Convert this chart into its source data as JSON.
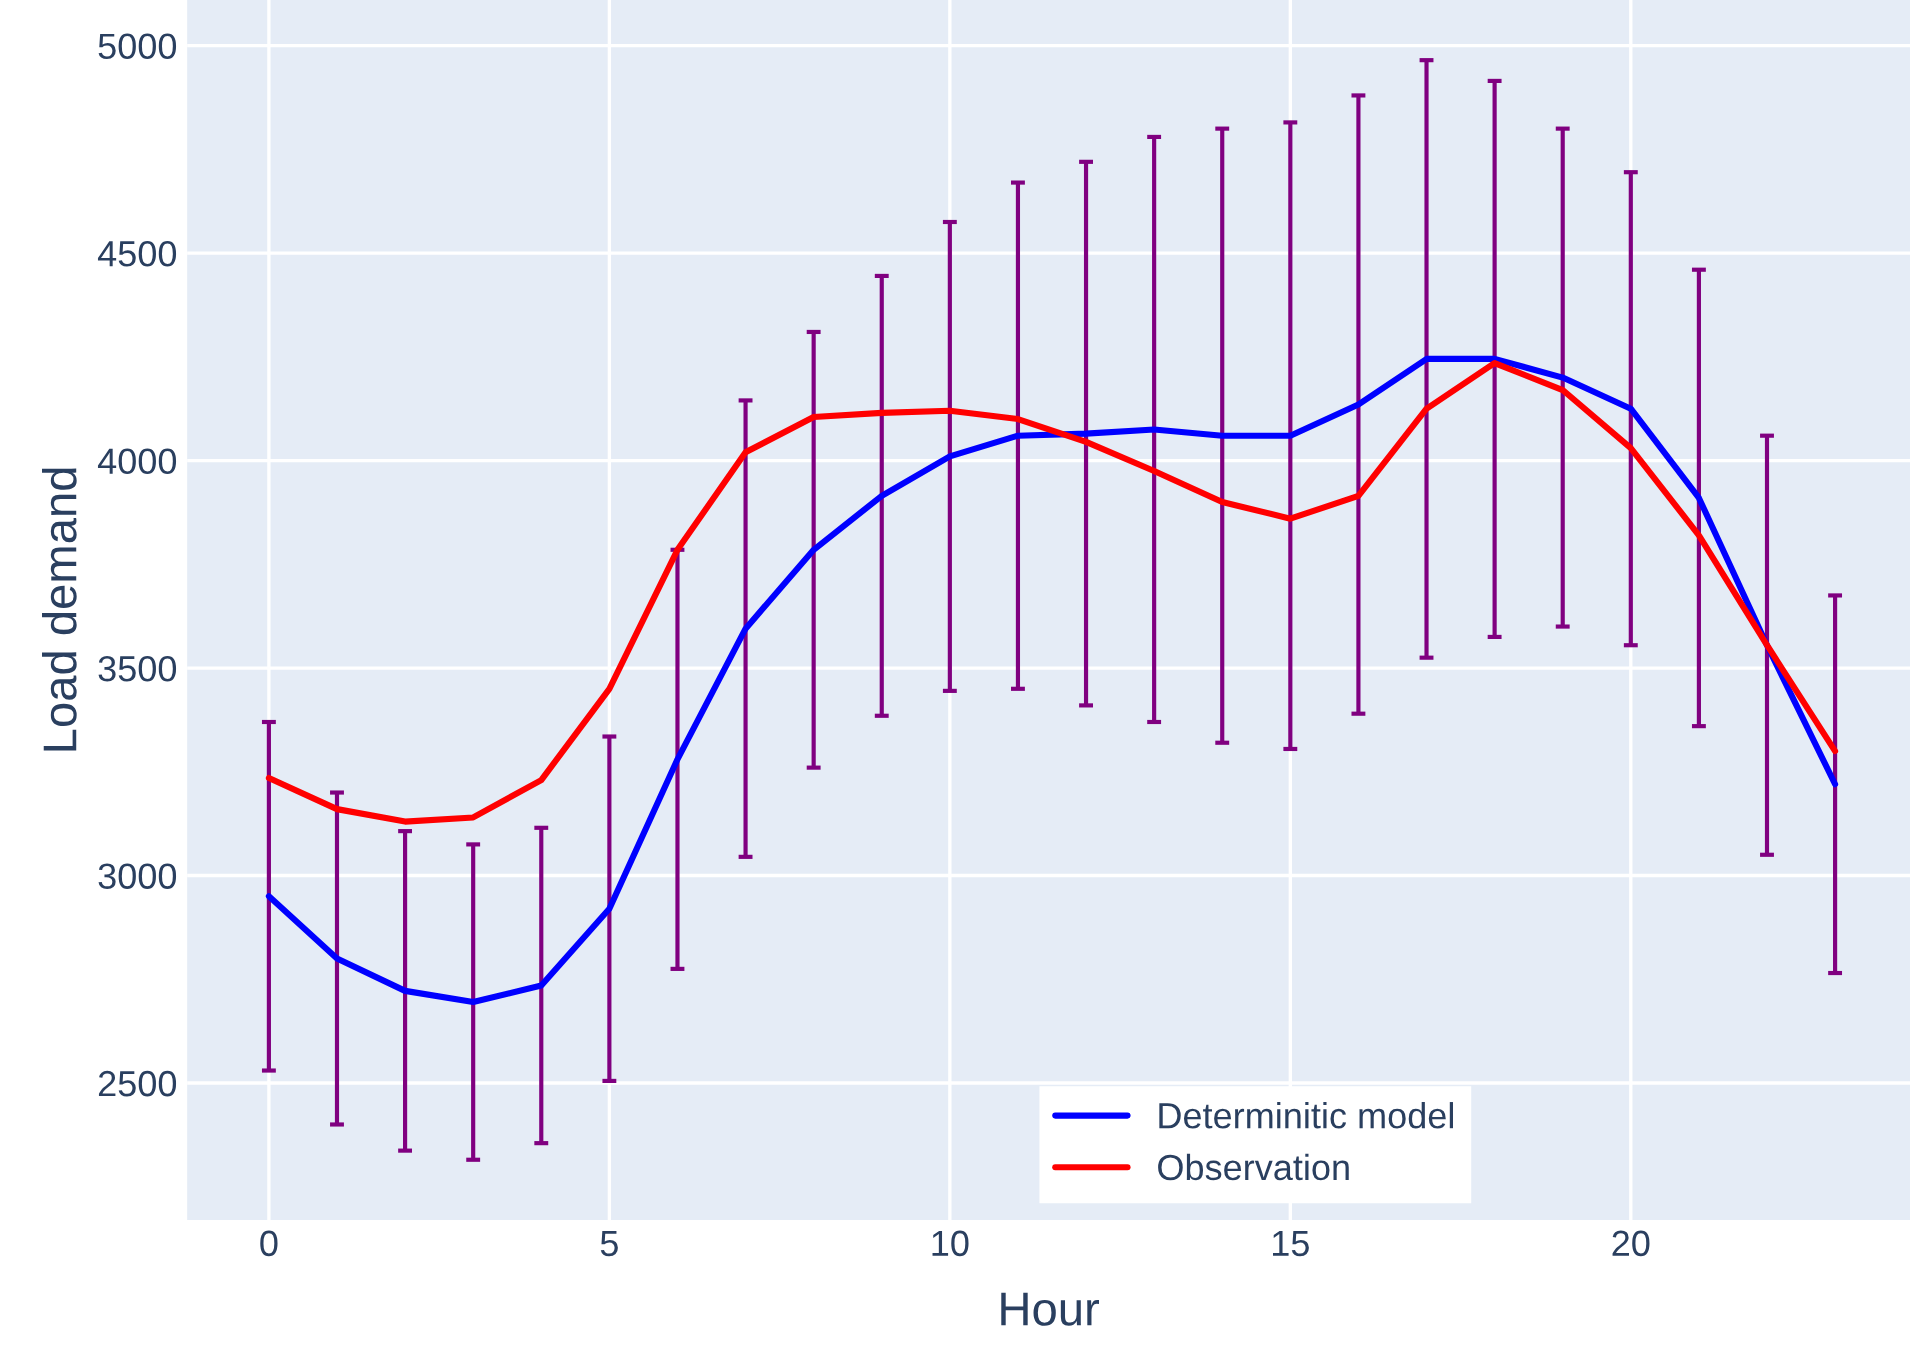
{
  "chart_data": {
    "type": "line",
    "xlabel": "Hour",
    "ylabel": "Load demand",
    "x": [
      0,
      1,
      2,
      3,
      4,
      5,
      6,
      7,
      8,
      9,
      10,
      11,
      12,
      13,
      14,
      15,
      16,
      17,
      18,
      19,
      20,
      21,
      22,
      23
    ],
    "series": [
      {
        "name": "Determinitic model",
        "color": "#0000ff",
        "values": [
          2950,
          2800,
          2722,
          2695,
          2735,
          2920,
          3280,
          3595,
          3785,
          3915,
          4010,
          4060,
          4065,
          4075,
          4060,
          4060,
          4135,
          4245,
          4245,
          4200,
          4125,
          3910,
          3555,
          3220
        ],
        "errors": [
          420,
          400,
          385,
          380,
          380,
          415,
          505,
          550,
          525,
          530,
          565,
          610,
          655,
          705,
          740,
          755,
          745,
          720,
          670,
          600,
          570,
          550,
          505,
          455
        ]
      },
      {
        "name": "Observation",
        "color": "#ff0000",
        "values": [
          3235,
          3160,
          3130,
          3140,
          3230,
          3450,
          3785,
          4020,
          4105,
          4115,
          4120,
          4100,
          4045,
          3975,
          3900,
          3860,
          3915,
          4125,
          4235,
          4170,
          4030,
          3820,
          3555,
          3300
        ]
      }
    ],
    "xlim": [
      -1.2,
      24.1
    ],
    "ylim": [
      2170,
      5110
    ],
    "xticks": [
      0,
      5,
      10,
      15,
      20
    ],
    "yticks": [
      2500,
      3000,
      3500,
      4000,
      4500,
      5000
    ],
    "grid": true,
    "legend": "bottom",
    "marker": "none",
    "line_style": "solid"
  }
}
